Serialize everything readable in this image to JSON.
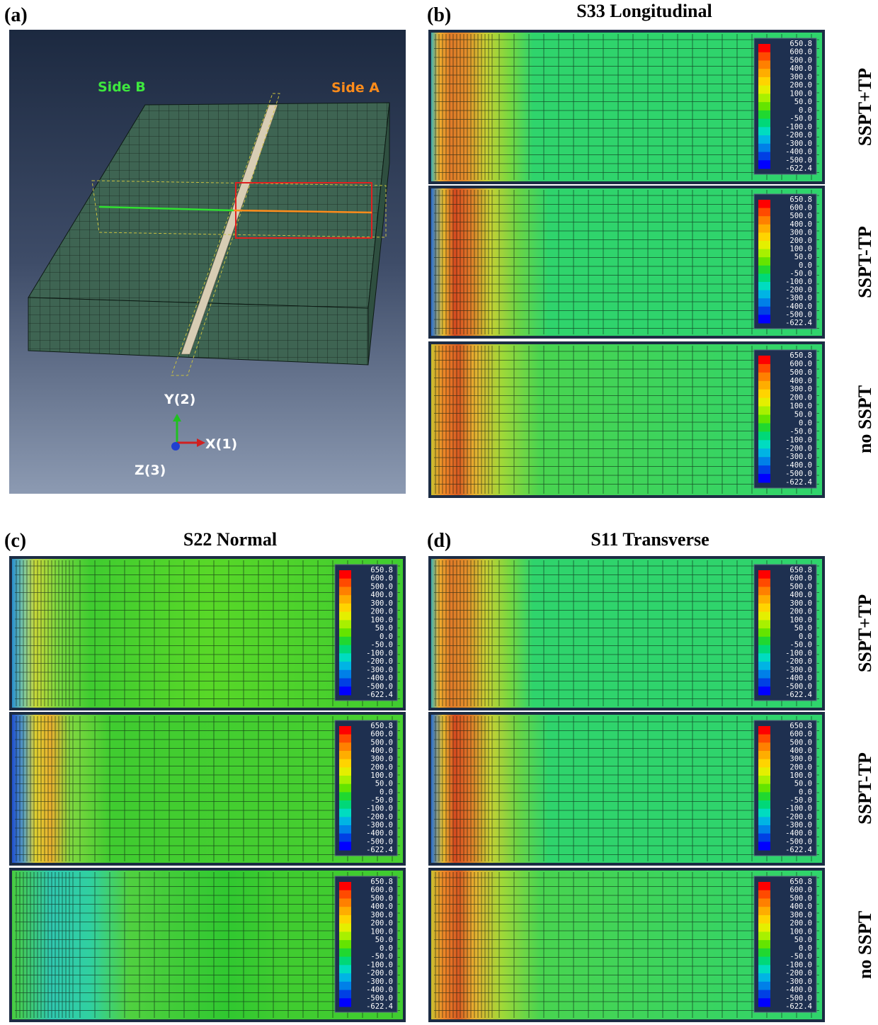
{
  "panels": [
    {
      "label": "(a)",
      "annotations": {
        "side_b": "Side B",
        "side_a": "Side A",
        "y_axis": "Y(2)",
        "x_axis": "X(1)",
        "z_axis": "Z(3)"
      }
    },
    {
      "label": "(b)",
      "title": "S33 Longitudinal"
    },
    {
      "label": "(c)",
      "title": "S22 Normal"
    },
    {
      "label": "(d)",
      "title": "S11 Transverse"
    }
  ],
  "row_labels": [
    "SSPT+TP",
    "SSPT-TP",
    "no SSPT"
  ],
  "legend": [
    "650.8",
    "600.0",
    "500.0",
    "400.0",
    "300.0",
    "200.0",
    "100.0",
    "50.0",
    "0.0",
    "-50.0",
    "-100.0",
    "-200.0",
    "-300.0",
    "-400.0",
    "-500.0",
    "-622.4"
  ]
}
